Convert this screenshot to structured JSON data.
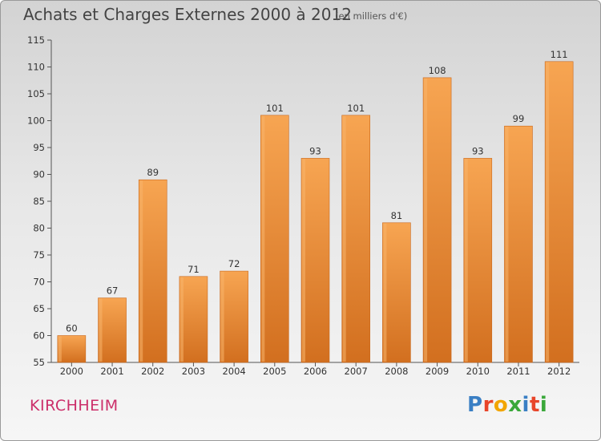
{
  "chart_data": {
    "type": "bar",
    "title": "Achats et Charges Externes 2000 à 2012",
    "subtitle": "(en milliers d'€)",
    "categories": [
      "2000",
      "2001",
      "2002",
      "2003",
      "2004",
      "2005",
      "2006",
      "2007",
      "2008",
      "2009",
      "2010",
      "2011",
      "2012"
    ],
    "values": [
      60,
      67,
      89,
      71,
      72,
      101,
      93,
      101,
      81,
      108,
      93,
      99,
      111
    ],
    "ylim": [
      55,
      115
    ],
    "yticks": [
      55,
      60,
      65,
      70,
      75,
      80,
      85,
      90,
      95,
      100,
      105,
      110,
      115
    ],
    "grid": false,
    "xlabel": "",
    "ylabel": "",
    "bar_color": "#f0913a",
    "bar_color_dark": "#d06d1e"
  },
  "footer": {
    "commune": "KIRCHHEIM",
    "logo_letters": [
      "P",
      "r",
      "o",
      "x",
      "i",
      "t",
      "i"
    ],
    "logo_colors": [
      "#3a7fc4",
      "#e8452a",
      "#f2a500",
      "#3aa83a",
      "#3a7fc4",
      "#e8452a",
      "#3aa83a"
    ]
  }
}
